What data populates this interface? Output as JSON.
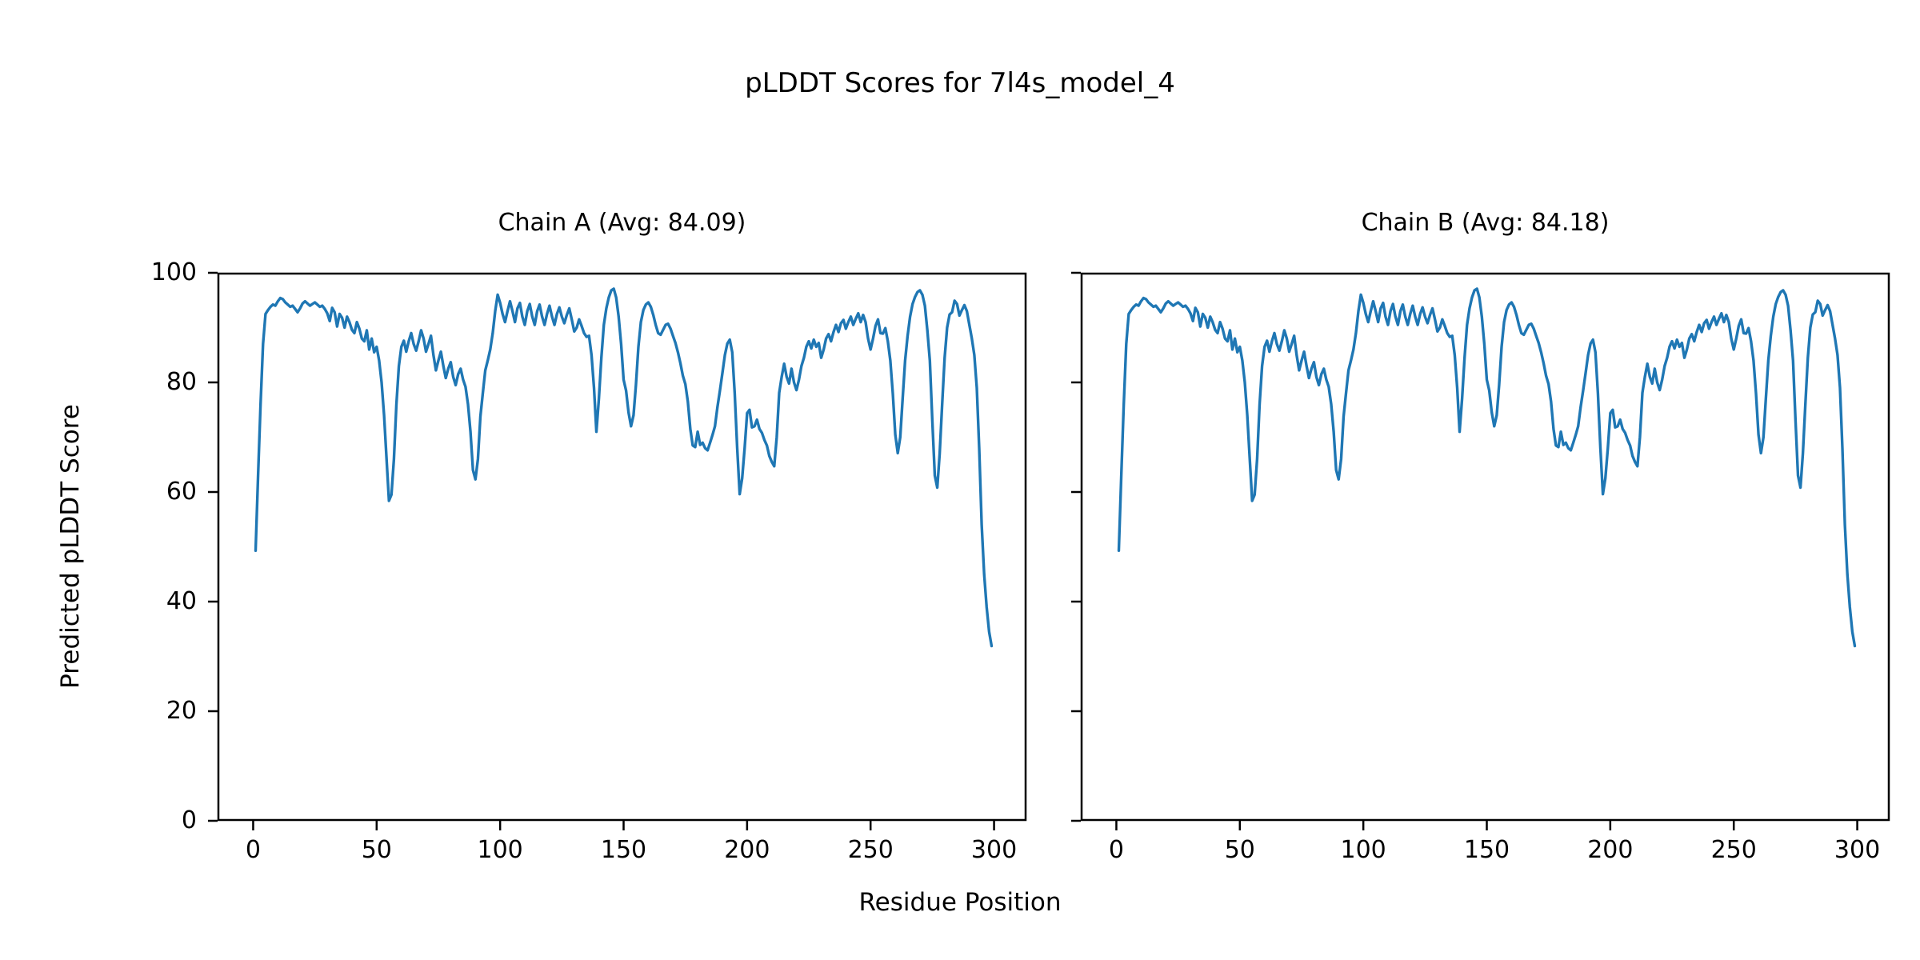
{
  "figure": {
    "title": "pLDDT Scores for 7l4s_model_4",
    "xlabel": "Residue Position",
    "ylabel": "Predicted pLDDT Score"
  },
  "chart_data": {
    "type": "line",
    "title": "pLDDT Scores for 7l4s_model_4",
    "xlabel": "Residue Position",
    "ylabel": "Predicted pLDDT Score",
    "line_color": "#1f77b4",
    "grid": false,
    "legend": "none",
    "xlim": [
      -14.4,
      313.1
    ],
    "ylim": [
      0,
      100
    ],
    "x_ticks": [
      0,
      50,
      100,
      150,
      200,
      250,
      300
    ],
    "y_ticks": [
      0,
      20,
      40,
      60,
      80,
      100
    ],
    "x_start": 1,
    "series": [
      {
        "name": "Chain A",
        "title": "Chain A (Avg: 84.09)",
        "avg": 84.09
      },
      {
        "name": "Chain B",
        "title": "Chain B (Avg: 84.18)",
        "avg": 84.18
      }
    ],
    "values": [
      49.3,
      63,
      76,
      87,
      92.5,
      93.2,
      93.8,
      94.2,
      94,
      94.8,
      95.4,
      95.2,
      94.6,
      94.2,
      93.8,
      94,
      93.4,
      92.8,
      93.5,
      94.4,
      94.8,
      94.4,
      94,
      94.3,
      94.6,
      94.2,
      93.8,
      94,
      93.4,
      92.6,
      91.2,
      93.6,
      92.8,
      90.2,
      92.5,
      91.8,
      90,
      92,
      91,
      89.6,
      89,
      91,
      89.8,
      88,
      87.5,
      89.5,
      86,
      88,
      85.5,
      86.5,
      84,
      80,
      74,
      66,
      58.4,
      59.5,
      66,
      76,
      83,
      86.5,
      87.6,
      85.6,
      87.5,
      89,
      87,
      85.8,
      87.5,
      89.5,
      88,
      85.6,
      87,
      88.5,
      85,
      82.2,
      84,
      85.6,
      83,
      80.8,
      82.5,
      83.7,
      81,
      79.5,
      81.5,
      82.5,
      80.5,
      79.2,
      76,
      71,
      64,
      62.3,
      66,
      73.8,
      78,
      82.2,
      84,
      86,
      89,
      93,
      96,
      94.5,
      92.5,
      91,
      93,
      94.8,
      93,
      91,
      93.5,
      94.5,
      92,
      90.5,
      93,
      94.3,
      92,
      90.5,
      93,
      94.2,
      92,
      90.5,
      92.5,
      94,
      92,
      90.5,
      92.5,
      93.7,
      92,
      90.8,
      92.3,
      93.5,
      91.5,
      89.3,
      90,
      91.5,
      90.3,
      89,
      88.3,
      88.5,
      85,
      79,
      71,
      77,
      84.5,
      90.5,
      93.5,
      95.5,
      96.8,
      97.1,
      95.5,
      92,
      87,
      80.5,
      78.5,
      74.5,
      72,
      74,
      79.5,
      86.5,
      91,
      93.2,
      94.2,
      94.6,
      93.8,
      92.3,
      90.5,
      89,
      88.7,
      89.6,
      90.5,
      90.7,
      89.8,
      88.5,
      87.2,
      85.5,
      83.5,
      81.2,
      79.7,
      76.5,
      71.5,
      68.5,
      68.2,
      71,
      68.6,
      69,
      68,
      67.6,
      69,
      70.4,
      72,
      75.5,
      78.5,
      81.7,
      85,
      87.1,
      87.8,
      85.5,
      78,
      68,
      59.6,
      62.5,
      68,
      74.4,
      75,
      71.8,
      72,
      73.2,
      71.5,
      70.8,
      69.5,
      68.5,
      66.6,
      65.5,
      64.7,
      70,
      78.1,
      81,
      83.4,
      81,
      79.8,
      82.5,
      80,
      78.6,
      80.5,
      83,
      84.5,
      86.5,
      87.5,
      86.2,
      87.8,
      86.5,
      87.2,
      84.5,
      86,
      88,
      88.8,
      87.5,
      89.2,
      90.5,
      89.2,
      90.8,
      91.4,
      89.8,
      91,
      92,
      90.5,
      91.6,
      92.6,
      91,
      92.3,
      91,
      88,
      86,
      88,
      90.3,
      91.5,
      89,
      88.9,
      89.9,
      87.5,
      84,
      78,
      70.5,
      67.1,
      70,
      77,
      84,
      88.5,
      92,
      94.3,
      95.6,
      96.5,
      96.8,
      96,
      94,
      89.5,
      84,
      73,
      63,
      60.8,
      67,
      76,
      84.5,
      90,
      92.4,
      92.8,
      94.9,
      94.3,
      92.2,
      93.2,
      94.1,
      93,
      90.5,
      88,
      85,
      79,
      68,
      54,
      45,
      39,
      34.5,
      31.9
    ]
  }
}
